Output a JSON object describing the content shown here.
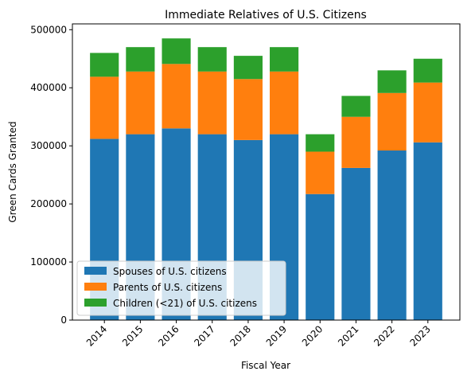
{
  "chart_data": {
    "type": "bar",
    "stacked": true,
    "title": "Immediate Relatives of U.S. Citizens",
    "xlabel": "Fiscal Year",
    "ylabel": "Green Cards Granted",
    "ylim": [
      0,
      510000
    ],
    "yticks": [
      0,
      100000,
      200000,
      300000,
      400000,
      500000
    ],
    "ytick_labels": [
      "0",
      "100000",
      "200000",
      "300000",
      "400000",
      "500000"
    ],
    "categories": [
      "2014",
      "2015",
      "2016",
      "2017",
      "2018",
      "2019",
      "2020",
      "2021",
      "2022",
      "2023"
    ],
    "series": [
      {
        "name": "Spouses of U.S. citizens",
        "color": "#1f77b4",
        "values": [
          312000,
          320000,
          330000,
          320000,
          310000,
          320000,
          217000,
          262000,
          292000,
          306000
        ]
      },
      {
        "name": "Parents of U.S. citizens",
        "color": "#ff7f0e",
        "values": [
          107000,
          108000,
          111000,
          108000,
          105000,
          108000,
          73000,
          88000,
          99000,
          103000
        ]
      },
      {
        "name": "Children (<21) of U.S. citizens",
        "color": "#2ca02c",
        "values": [
          41000,
          42000,
          44000,
          42000,
          40000,
          42000,
          30000,
          36000,
          39000,
          41000
        ]
      }
    ],
    "legend_position": "lower-left",
    "grid": false
  }
}
